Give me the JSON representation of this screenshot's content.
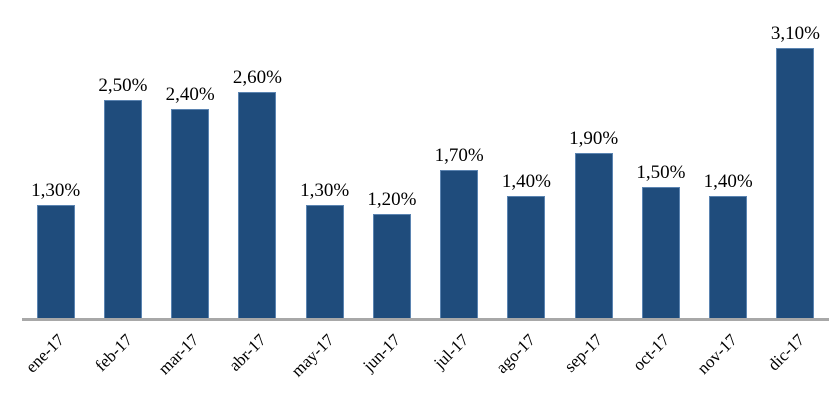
{
  "chart_data": {
    "type": "bar",
    "title": "",
    "xlabel": "",
    "ylabel": "",
    "categories": [
      "ene-17",
      "feb-17",
      "mar-17",
      "abr-17",
      "may-17",
      "jun-17",
      "jul-17",
      "ago-17",
      "sep-17",
      "oct-17",
      "nov-17",
      "dic-17"
    ],
    "values": [
      1.3,
      2.5,
      2.4,
      2.6,
      1.3,
      1.2,
      1.7,
      1.4,
      1.9,
      1.5,
      1.4,
      3.1
    ],
    "value_labels": [
      "1,30%",
      "2,50%",
      "2,40%",
      "2,60%",
      "1,30%",
      "1,20%",
      "1,70%",
      "1,40%",
      "1,90%",
      "1,50%",
      "1,40%",
      "3,10%"
    ],
    "ylim": [
      0,
      3.5
    ],
    "grid": false,
    "legend_position": "none",
    "y_axis_visible": false,
    "bar_color": "#1F4C7C",
    "bar_border_color": "#5B84B1",
    "axis_line_color": "#A8A8A8",
    "label_color": "#000000"
  }
}
